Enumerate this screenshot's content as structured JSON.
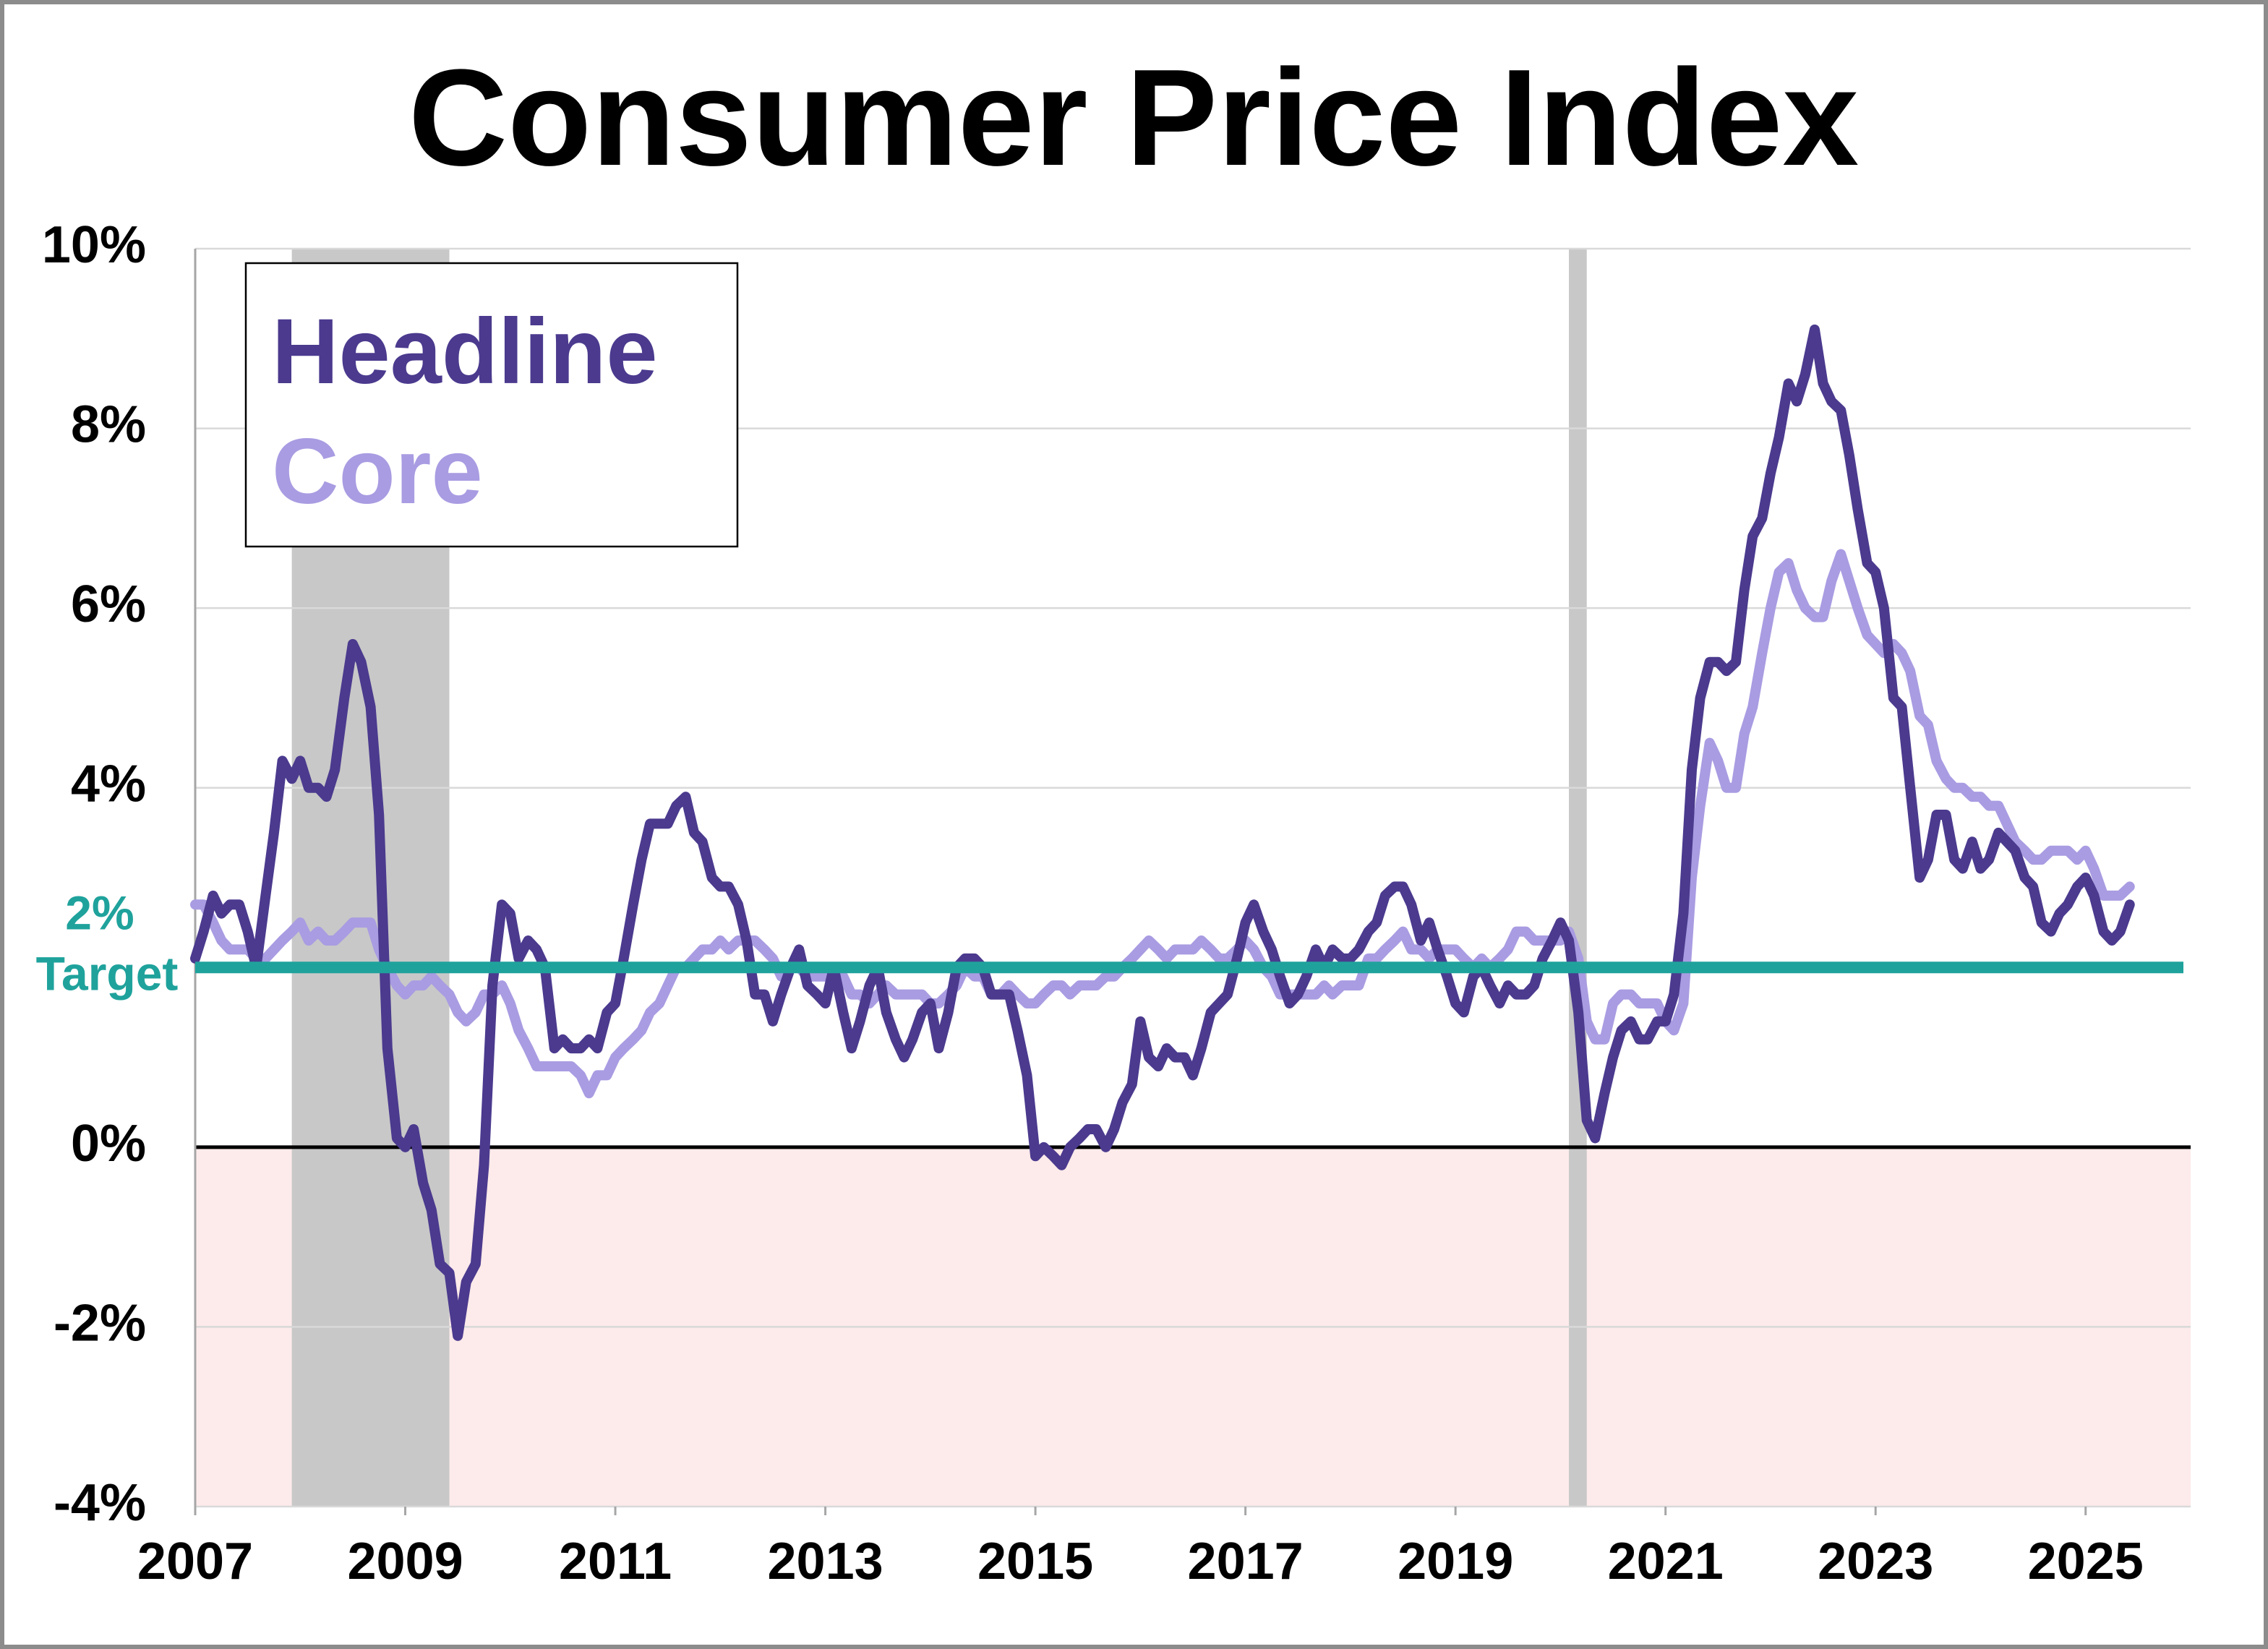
{
  "chart_data": {
    "type": "line",
    "title": "Consumer Price Index",
    "xlim": [
      2007,
      2026
    ],
    "xticks": [
      2007,
      2009,
      2011,
      2013,
      2015,
      2017,
      2019,
      2021,
      2023,
      2025
    ],
    "ylim": [
      -4,
      10
    ],
    "yticks": [
      {
        "value": -4,
        "label": "-4%"
      },
      {
        "value": -2,
        "label": "-2%"
      },
      {
        "value": 0,
        "label": "0%"
      },
      {
        "value": 4,
        "label": "4%"
      },
      {
        "value": 6,
        "label": "6%"
      },
      {
        "value": 8,
        "label": "8%"
      },
      {
        "value": 10,
        "label": "10%"
      }
    ],
    "grid": true,
    "legend": "upper left",
    "target": 2,
    "target_label": [
      "2%",
      "Target"
    ],
    "target_color": "#1fa29c",
    "recessions": [
      [
        2007.92,
        2009.42
      ],
      [
        2020.08,
        2020.25
      ]
    ],
    "x": [
      2007.0,
      2007.08,
      2007.17,
      2007.25,
      2007.33,
      2007.42,
      2007.5,
      2007.58,
      2007.67,
      2007.75,
      2007.83,
      2007.92,
      2008.0,
      2008.08,
      2008.17,
      2008.25,
      2008.33,
      2008.42,
      2008.5,
      2008.58,
      2008.67,
      2008.75,
      2008.83,
      2008.92,
      2009.0,
      2009.08,
      2009.17,
      2009.25,
      2009.33,
      2009.42,
      2009.5,
      2009.58,
      2009.67,
      2009.75,
      2009.83,
      2009.92,
      2010.0,
      2010.08,
      2010.17,
      2010.25,
      2010.33,
      2010.42,
      2010.5,
      2010.58,
      2010.67,
      2010.75,
      2010.83,
      2010.92,
      2011.0,
      2011.08,
      2011.17,
      2011.25,
      2011.33,
      2011.42,
      2011.5,
      2011.58,
      2011.67,
      2011.75,
      2011.83,
      2011.92,
      2012.0,
      2012.08,
      2012.17,
      2012.25,
      2012.33,
      2012.42,
      2012.5,
      2012.58,
      2012.67,
      2012.75,
      2012.83,
      2012.92,
      2013.0,
      2013.08,
      2013.17,
      2013.25,
      2013.33,
      2013.42,
      2013.5,
      2013.58,
      2013.67,
      2013.75,
      2013.83,
      2013.92,
      2014.0,
      2014.08,
      2014.17,
      2014.25,
      2014.33,
      2014.42,
      2014.5,
      2014.58,
      2014.67,
      2014.75,
      2014.83,
      2014.92,
      2015.0,
      2015.08,
      2015.17,
      2015.25,
      2015.33,
      2015.42,
      2015.5,
      2015.58,
      2015.67,
      2015.75,
      2015.83,
      2015.92,
      2016.0,
      2016.08,
      2016.17,
      2016.25,
      2016.33,
      2016.42,
      2016.5,
      2016.58,
      2016.67,
      2016.75,
      2016.83,
      2016.92,
      2017.0,
      2017.08,
      2017.17,
      2017.25,
      2017.33,
      2017.42,
      2017.5,
      2017.58,
      2017.67,
      2017.75,
      2017.83,
      2017.92,
      2018.0,
      2018.08,
      2018.17,
      2018.25,
      2018.33,
      2018.42,
      2018.5,
      2018.58,
      2018.67,
      2018.75,
      2018.83,
      2018.92,
      2019.0,
      2019.08,
      2019.17,
      2019.25,
      2019.33,
      2019.42,
      2019.5,
      2019.58,
      2019.67,
      2019.75,
      2019.83,
      2019.92,
      2020.0,
      2020.08,
      2020.17,
      2020.25,
      2020.33,
      2020.42,
      2020.5,
      2020.58,
      2020.67,
      2020.75,
      2020.83,
      2020.92,
      2021.0,
      2021.08,
      2021.17,
      2021.25,
      2021.33,
      2021.42,
      2021.5,
      2021.58,
      2021.67,
      2021.75,
      2021.83,
      2021.92,
      2022.0,
      2022.08,
      2022.17,
      2022.25,
      2022.33,
      2022.42,
      2022.5,
      2022.58,
      2022.67,
      2022.75,
      2022.83,
      2022.92,
      2023.0,
      2023.08,
      2023.17,
      2023.25,
      2023.33,
      2023.42,
      2023.5,
      2023.58,
      2023.67,
      2023.75,
      2023.83,
      2023.92,
      2024.0,
      2024.08,
      2024.17,
      2024.25,
      2024.33,
      2024.42,
      2024.5,
      2024.58,
      2024.67,
      2024.75,
      2024.83,
      2024.92,
      2025.0,
      2025.08,
      2025.17,
      2025.25,
      2025.33,
      2025.42
    ],
    "series": [
      {
        "name": "Headline",
        "color": "#4b3a8e",
        "values": [
          2.1,
          2.4,
          2.8,
          2.6,
          2.7,
          2.7,
          2.4,
          2.0,
          2.8,
          3.5,
          4.3,
          4.1,
          4.3,
          4.0,
          4.0,
          3.9,
          4.2,
          5.0,
          5.6,
          5.4,
          4.9,
          3.7,
          1.1,
          0.1,
          0.0,
          0.2,
          -0.4,
          -0.7,
          -1.3,
          -1.4,
          -2.1,
          -1.5,
          -1.3,
          -0.2,
          1.8,
          2.7,
          2.6,
          2.1,
          2.3,
          2.2,
          2.0,
          1.1,
          1.2,
          1.1,
          1.1,
          1.2,
          1.1,
          1.5,
          1.6,
          2.1,
          2.7,
          3.2,
          3.6,
          3.6,
          3.6,
          3.8,
          3.9,
          3.5,
          3.4,
          3.0,
          2.9,
          2.9,
          2.7,
          2.3,
          1.7,
          1.7,
          1.4,
          1.7,
          2.0,
          2.2,
          1.8,
          1.7,
          1.6,
          2.0,
          1.5,
          1.1,
          1.4,
          1.8,
          2.0,
          1.5,
          1.2,
          1.0,
          1.2,
          1.5,
          1.6,
          1.1,
          1.5,
          2.0,
          2.1,
          2.1,
          2.0,
          1.7,
          1.7,
          1.7,
          1.3,
          0.8,
          -0.1,
          0.0,
          -0.1,
          -0.2,
          0.0,
          0.1,
          0.2,
          0.2,
          0.0,
          0.2,
          0.5,
          0.7,
          1.4,
          1.0,
          0.9,
          1.1,
          1.0,
          1.0,
          0.8,
          1.1,
          1.5,
          1.6,
          1.7,
          2.1,
          2.5,
          2.7,
          2.4,
          2.2,
          1.9,
          1.6,
          1.7,
          1.9,
          2.2,
          2.0,
          2.2,
          2.1,
          2.1,
          2.2,
          2.4,
          2.5,
          2.8,
          2.9,
          2.9,
          2.7,
          2.3,
          2.5,
          2.2,
          1.9,
          1.6,
          1.5,
          1.9,
          2.0,
          1.8,
          1.6,
          1.8,
          1.7,
          1.7,
          1.8,
          2.1,
          2.3,
          2.5,
          2.3,
          1.5,
          0.3,
          0.1,
          0.6,
          1.0,
          1.3,
          1.4,
          1.2,
          1.2,
          1.4,
          1.4,
          1.7,
          2.6,
          4.2,
          5.0,
          5.4,
          5.4,
          5.3,
          5.4,
          6.2,
          6.8,
          7.0,
          7.5,
          7.9,
          8.5,
          8.3,
          8.6,
          9.1,
          8.5,
          8.3,
          8.2,
          7.7,
          7.1,
          6.5,
          6.4,
          6.0,
          5.0,
          4.9,
          4.0,
          3.0,
          3.2,
          3.7,
          3.7,
          3.2,
          3.1,
          3.4,
          3.1,
          3.2,
          3.5,
          3.4,
          3.3,
          3.0,
          2.9,
          2.5,
          2.4,
          2.6,
          2.7,
          2.9,
          3.0,
          2.8,
          2.4,
          2.3,
          2.4,
          2.7
        ]
      },
      {
        "name": "Core",
        "color": "#a99ce2",
        "values": [
          2.7,
          2.7,
          2.5,
          2.3,
          2.2,
          2.2,
          2.2,
          2.1,
          2.1,
          2.2,
          2.3,
          2.4,
          2.5,
          2.3,
          2.4,
          2.3,
          2.3,
          2.4,
          2.5,
          2.5,
          2.5,
          2.2,
          2.0,
          1.8,
          1.7,
          1.8,
          1.8,
          1.9,
          1.8,
          1.7,
          1.5,
          1.4,
          1.5,
          1.7,
          1.7,
          1.8,
          1.6,
          1.3,
          1.1,
          0.9,
          0.9,
          0.9,
          0.9,
          0.9,
          0.8,
          0.6,
          0.8,
          0.8,
          1.0,
          1.1,
          1.2,
          1.3,
          1.5,
          1.6,
          1.8,
          2.0,
          2.0,
          2.1,
          2.2,
          2.2,
          2.3,
          2.2,
          2.3,
          2.3,
          2.3,
          2.2,
          2.1,
          1.9,
          2.0,
          2.0,
          1.9,
          1.9,
          1.9,
          2.0,
          1.9,
          1.7,
          1.7,
          1.6,
          1.7,
          1.8,
          1.7,
          1.7,
          1.7,
          1.7,
          1.6,
          1.6,
          1.7,
          1.8,
          2.0,
          1.9,
          1.9,
          1.7,
          1.7,
          1.8,
          1.7,
          1.6,
          1.6,
          1.7,
          1.8,
          1.8,
          1.7,
          1.8,
          1.8,
          1.8,
          1.9,
          1.9,
          2.0,
          2.1,
          2.2,
          2.3,
          2.2,
          2.1,
          2.2,
          2.2,
          2.2,
          2.3,
          2.2,
          2.1,
          2.1,
          2.2,
          2.3,
          2.2,
          2.0,
          1.9,
          1.7,
          1.7,
          1.7,
          1.7,
          1.7,
          1.8,
          1.7,
          1.8,
          1.8,
          1.8,
          2.1,
          2.1,
          2.2,
          2.3,
          2.4,
          2.2,
          2.2,
          2.1,
          2.2,
          2.2,
          2.2,
          2.1,
          2.0,
          2.1,
          2.0,
          2.1,
          2.2,
          2.4,
          2.4,
          2.3,
          2.3,
          2.3,
          2.3,
          2.4,
          2.1,
          1.4,
          1.2,
          1.2,
          1.6,
          1.7,
          1.7,
          1.6,
          1.6,
          1.6,
          1.4,
          1.3,
          1.6,
          3.0,
          3.8,
          4.5,
          4.3,
          4.0,
          4.0,
          4.6,
          4.9,
          5.5,
          6.0,
          6.4,
          6.5,
          6.2,
          6.0,
          5.9,
          5.9,
          6.3,
          6.6,
          6.3,
          6.0,
          5.7,
          5.6,
          5.5,
          5.6,
          5.5,
          5.3,
          4.8,
          4.7,
          4.3,
          4.1,
          4.0,
          4.0,
          3.9,
          3.9,
          3.8,
          3.8,
          3.6,
          3.4,
          3.3,
          3.2,
          3.2,
          3.3,
          3.3,
          3.3,
          3.2,
          3.3,
          3.1,
          2.8,
          2.8,
          2.8,
          2.9
        ]
      }
    ]
  }
}
